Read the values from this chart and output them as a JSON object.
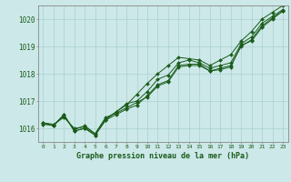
{
  "title": "Graphe pression niveau de la mer (hPa)",
  "bg_color": "#cce8e8",
  "line_color": "#1a5c1a",
  "grid_color": "#aad0d0",
  "xlim": [
    -0.5,
    23.5
  ],
  "ylim": [
    1015.5,
    1020.5
  ],
  "yticks": [
    1016,
    1017,
    1018,
    1019,
    1020
  ],
  "xticks": [
    0,
    1,
    2,
    3,
    4,
    5,
    6,
    7,
    8,
    9,
    10,
    11,
    12,
    13,
    14,
    15,
    16,
    17,
    18,
    19,
    20,
    21,
    22,
    23
  ],
  "series": [
    [
      1016.2,
      1016.1,
      1016.5,
      1015.9,
      1016.0,
      1015.75,
      1016.3,
      1016.5,
      1016.7,
      1016.85,
      1017.2,
      1017.6,
      1017.75,
      1018.3,
      1018.35,
      1018.35,
      1018.1,
      1018.15,
      1018.25,
      1019.05,
      1019.2,
      1019.7,
      1020.0,
      1020.3
    ],
    [
      1016.2,
      1016.15,
      1016.4,
      1016.0,
      1016.05,
      1015.8,
      1016.35,
      1016.6,
      1016.9,
      1017.0,
      1017.35,
      1017.8,
      1017.95,
      1018.4,
      1018.5,
      1018.4,
      1018.2,
      1018.3,
      1018.4,
      1019.1,
      1019.35,
      1019.85,
      1020.1,
      1020.35
    ],
    [
      1016.15,
      1016.1,
      1016.45,
      1015.95,
      1016.1,
      1015.8,
      1016.4,
      1016.55,
      1016.75,
      1016.95,
      1017.15,
      1017.55,
      1017.7,
      1018.25,
      1018.3,
      1018.3,
      1018.1,
      1018.2,
      1018.3,
      1019.0,
      1019.25,
      1019.75,
      1020.05,
      1020.3
    ],
    [
      1016.2,
      1016.1,
      1016.5,
      1015.9,
      1016.0,
      1015.75,
      1016.3,
      1016.6,
      1016.85,
      1017.25,
      1017.65,
      1018.0,
      1018.3,
      1018.6,
      1018.55,
      1018.5,
      1018.3,
      1018.5,
      1018.7,
      1019.2,
      1019.55,
      1020.0,
      1020.25,
      1020.5
    ]
  ]
}
